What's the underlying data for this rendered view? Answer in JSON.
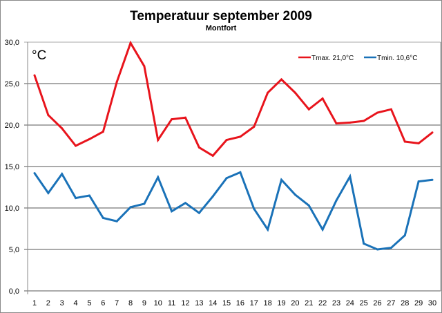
{
  "chart_data": {
    "type": "line",
    "title": "Temperatuur september 2009",
    "subtitle": "Montfort",
    "unit_label": "°C",
    "x": [
      1,
      2,
      3,
      4,
      5,
      6,
      7,
      8,
      9,
      10,
      11,
      12,
      13,
      14,
      15,
      16,
      17,
      18,
      19,
      20,
      21,
      22,
      23,
      24,
      25,
      26,
      27,
      28,
      29,
      30
    ],
    "x_tick_labels": [
      "1",
      "2",
      "3",
      "4",
      "5",
      "6",
      "7",
      "8",
      "9",
      "10",
      "11",
      "12",
      "13",
      "14",
      "15",
      "16",
      "17",
      "18",
      "19",
      "20",
      "21",
      "22",
      "23",
      "24",
      "25",
      "26",
      "27",
      "28",
      "29",
      "30"
    ],
    "y_tick_labels": [
      "0,0",
      "5,0",
      "10,0",
      "15,0",
      "20,0",
      "25,0",
      "30,0"
    ],
    "y_ticks": [
      0,
      5,
      10,
      15,
      20,
      25,
      30
    ],
    "ylim": [
      0,
      30
    ],
    "grid": true,
    "legend_position": "top-right",
    "series": [
      {
        "name": "Tmax. 21,0°C",
        "color": "#e8141c",
        "values": [
          26.0,
          21.2,
          19.6,
          17.5,
          18.3,
          19.2,
          25.2,
          29.9,
          27.1,
          18.2,
          20.7,
          20.9,
          17.3,
          16.3,
          18.2,
          18.6,
          19.8,
          23.9,
          25.5,
          23.9,
          21.9,
          23.2,
          20.2,
          20.3,
          20.5,
          21.5,
          21.9,
          18.0,
          17.8,
          19.1
        ]
      },
      {
        "name": "Tmin. 10,6°C",
        "color": "#1a72b8",
        "values": [
          14.2,
          11.8,
          14.1,
          11.2,
          11.5,
          8.8,
          8.4,
          10.1,
          10.5,
          13.7,
          9.6,
          10.6,
          9.4,
          11.4,
          13.6,
          14.3,
          9.9,
          7.4,
          13.4,
          11.6,
          10.3,
          7.4,
          10.9,
          13.8,
          5.7,
          5.0,
          5.2,
          6.7,
          13.2,
          13.4
        ]
      }
    ]
  }
}
